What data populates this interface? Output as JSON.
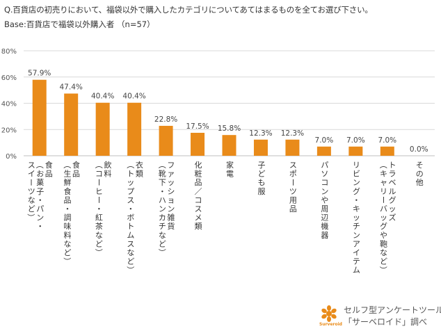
{
  "header": {
    "question": "Q.百貨店の初売りにおいて、福袋以外で購入したカテゴリについてあてはまるものを全てお選び下さい。",
    "base": "Base:百貨店で福袋以外購入者 （n=57）"
  },
  "chart_data": {
    "type": "bar",
    "categories": [
      "食品（お菓子・パン・スイーツなど）",
      "食品（生鮮食品・調味料など）",
      "飲料（コーヒー・紅茶など）",
      "衣類（トップス・ボトムスなど）",
      "ファッション雑貨（靴下・ハンカチなど）",
      "化粧品／コスメ類",
      "家電",
      "子ども服",
      "スポーツ用品",
      "パソコンや周辺機器",
      "リビング・キッチンアイテム",
      "トラベルグッズ（キャリーバッグや鞄など）",
      "その他"
    ],
    "category_label_lines": [
      [
        "食品",
        "（お菓子・パン・",
        "スイーツなど）"
      ],
      [
        "食品",
        "（生鮮食品・調味料など）"
      ],
      [
        "飲料",
        "（コーヒー・紅茶など）"
      ],
      [
        "衣類",
        "（トップス・ボトムスなど）"
      ],
      [
        "ファッション雑貨",
        "（靴下・ハンカチなど）"
      ],
      [
        "化粧品／コスメ類"
      ],
      [
        "家電"
      ],
      [
        "子ども服"
      ],
      [
        "スポーツ用品"
      ],
      [
        "パソコンや周辺機器"
      ],
      [
        "リビング・キッチンアイテム"
      ],
      [
        "トラベルグッズ",
        "（キャリーバッグや鞄など）"
      ],
      [
        "その他"
      ]
    ],
    "values": [
      57.9,
      47.4,
      40.4,
      40.4,
      22.8,
      17.5,
      15.8,
      12.3,
      12.3,
      7.0,
      7.0,
      7.0,
      0.0
    ],
    "value_labels": [
      "57.9%",
      "47.4%",
      "40.4%",
      "40.4%",
      "22.8%",
      "17.5%",
      "15.8%",
      "12.3%",
      "12.3%",
      "7.0%",
      "7.0%",
      "7.0%",
      "0.0%"
    ],
    "yticks": [
      0,
      20,
      40,
      60,
      80
    ],
    "ytick_labels": [
      "0%",
      "20%",
      "40%",
      "60%",
      "80%"
    ],
    "ylim": [
      0,
      80
    ],
    "grid": true,
    "bar_color": "#e98b1a",
    "grid_color": "#d9d9d9"
  },
  "footer": {
    "logo_icon": "sun-flower-icon",
    "brand": "Surveroid",
    "line1": "セルフ型アンケートツール",
    "line2": "「サーベロイド」調べ",
    "accent_color": "#e98b1a"
  }
}
